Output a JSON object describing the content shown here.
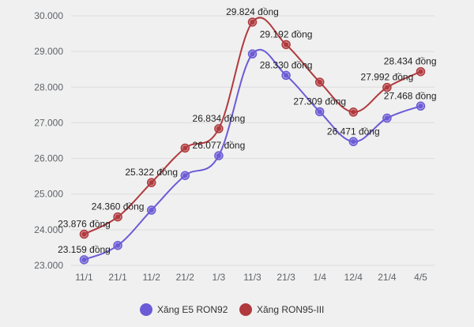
{
  "chart_data": {
    "type": "line",
    "categories": [
      "11/1",
      "21/1",
      "11/2",
      "21/2",
      "1/3",
      "11/3",
      "21/3",
      "1/4",
      "12/4",
      "21/4",
      "4/5"
    ],
    "y_ticks": [
      "23.000",
      "24.000",
      "25.000",
      "26.000",
      "27.000",
      "28.000",
      "29.000",
      "30.000"
    ],
    "ylim": [
      23000,
      30000
    ],
    "grid": true,
    "legend_position": "bottom",
    "series": [
      {
        "name": "Xăng E5 RON92",
        "color": "#6b5bd6",
        "values": [
          23159,
          23560,
          24550,
          25520,
          26077,
          28930,
          28330,
          27309,
          26471,
          27130,
          27468
        ],
        "labels": [
          "23.159 đồng",
          "",
          "",
          "",
          "26.077 đồng",
          "",
          "28.330 đồng",
          "27.309 đồng",
          "26.471 đồng",
          "",
          "27.468 đồng"
        ]
      },
      {
        "name": "Xăng RON95-III",
        "color": "#b03a3e",
        "values": [
          23876,
          24360,
          25322,
          26290,
          26834,
          29824,
          29192,
          28140,
          27300,
          27992,
          28434
        ],
        "labels": [
          "23.876 đồng",
          "24.360 đồng",
          "25.322 đồng",
          "",
          "26.834 đồng",
          "29.824 đồng",
          "29.192 đồng",
          "",
          "",
          "27.992 đồng",
          "28.434 đồng"
        ]
      }
    ]
  }
}
